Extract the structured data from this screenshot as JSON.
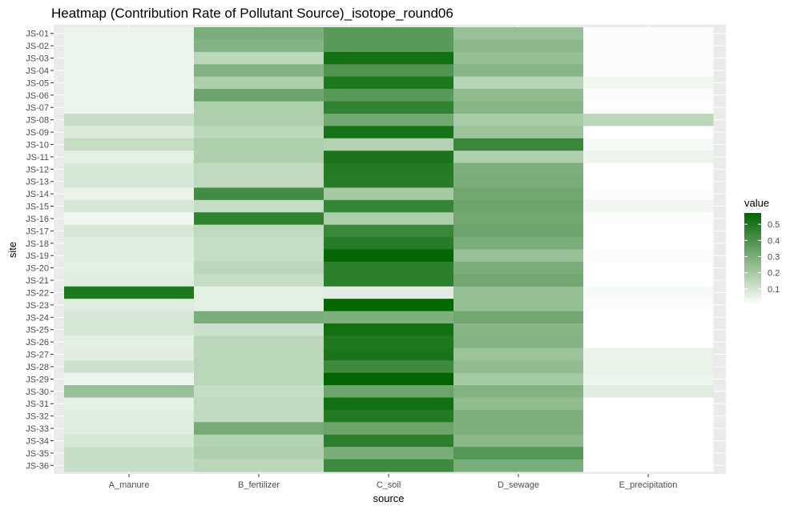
{
  "chart_data": {
    "type": "heatmap",
    "title": "Heatmap (Contribution Rate of Pollutant Source)_isotope_round06",
    "xlabel": "source",
    "ylabel": "site",
    "x_categories": [
      "A_manure",
      "B_fertilizer",
      "C_soil",
      "D_sewage",
      "E_precipitation"
    ],
    "y_categories": [
      "JS-01",
      "JS-02",
      "JS-03",
      "JS-04",
      "JS-05",
      "JS-06",
      "JS-07",
      "JS-08",
      "JS-09",
      "JS-10",
      "JS-11",
      "JS-12",
      "JS-13",
      "JS-14",
      "JS-15",
      "JS-16",
      "JS-17",
      "JS-18",
      "JS-19",
      "JS-20",
      "JS-21",
      "JS-22",
      "JS-23",
      "JS-24",
      "JS-25",
      "JS-26",
      "JS-27",
      "JS-28",
      "JS-29",
      "JS-30",
      "JS-31",
      "JS-32",
      "JS-33",
      "JS-34",
      "JS-35",
      "JS-36"
    ],
    "values": [
      [
        0.04,
        0.3,
        0.37,
        0.23,
        0.01
      ],
      [
        0.04,
        0.28,
        0.37,
        0.26,
        0.01
      ],
      [
        0.04,
        0.15,
        0.53,
        0.24,
        0.01
      ],
      [
        0.04,
        0.28,
        0.39,
        0.27,
        0.01
      ],
      [
        0.04,
        0.18,
        0.5,
        0.16,
        0.03
      ],
      [
        0.04,
        0.33,
        0.37,
        0.25,
        0.01
      ],
      [
        0.04,
        0.18,
        0.46,
        0.27,
        0.0
      ],
      [
        0.12,
        0.18,
        0.32,
        0.19,
        0.15
      ],
      [
        0.08,
        0.15,
        0.52,
        0.22,
        0.0
      ],
      [
        0.13,
        0.18,
        0.17,
        0.44,
        0.02
      ],
      [
        0.06,
        0.18,
        0.51,
        0.18,
        0.04
      ],
      [
        0.09,
        0.14,
        0.49,
        0.29,
        0.0
      ],
      [
        0.09,
        0.14,
        0.48,
        0.3,
        0.0
      ],
      [
        0.05,
        0.42,
        0.2,
        0.32,
        0.01
      ],
      [
        0.09,
        0.13,
        0.45,
        0.33,
        0.03
      ],
      [
        0.03,
        0.46,
        0.18,
        0.32,
        0.01
      ],
      [
        0.09,
        0.14,
        0.44,
        0.33,
        0.0
      ],
      [
        0.07,
        0.13,
        0.48,
        0.3,
        0.0
      ],
      [
        0.07,
        0.13,
        0.56,
        0.23,
        0.01
      ],
      [
        0.06,
        0.15,
        0.47,
        0.3,
        0.0
      ],
      [
        0.07,
        0.13,
        0.47,
        0.32,
        0.0
      ],
      [
        0.5,
        0.06,
        0.07,
        0.24,
        0.02
      ],
      [
        0.07,
        0.06,
        0.56,
        0.24,
        0.01
      ],
      [
        0.09,
        0.3,
        0.29,
        0.32,
        0.0
      ],
      [
        0.09,
        0.11,
        0.53,
        0.27,
        0.0
      ],
      [
        0.06,
        0.15,
        0.5,
        0.28,
        0.0
      ],
      [
        0.07,
        0.15,
        0.51,
        0.22,
        0.05
      ],
      [
        0.11,
        0.15,
        0.43,
        0.25,
        0.05
      ],
      [
        0.04,
        0.15,
        0.57,
        0.2,
        0.04
      ],
      [
        0.23,
        0.13,
        0.33,
        0.28,
        0.07
      ],
      [
        0.06,
        0.14,
        0.53,
        0.25,
        0.0
      ],
      [
        0.07,
        0.14,
        0.49,
        0.29,
        0.0
      ],
      [
        0.07,
        0.31,
        0.33,
        0.29,
        0.0
      ],
      [
        0.09,
        0.17,
        0.47,
        0.26,
        0.0
      ],
      [
        0.12,
        0.18,
        0.3,
        0.38,
        0.0
      ],
      [
        0.12,
        0.15,
        0.43,
        0.3,
        0.0
      ]
    ],
    "legend": {
      "title": "value",
      "ticks": [
        0.1,
        0.2,
        0.3,
        0.4,
        0.5
      ],
      "tick_labels": [
        "0.1",
        "0.2",
        "0.3",
        "0.4",
        "0.5"
      ],
      "range": [
        0,
        0.57
      ],
      "low_color": "#ffffff",
      "high_color": "#006400",
      "placement": "right"
    },
    "panel_background": "#ebebeb",
    "grid": true
  }
}
